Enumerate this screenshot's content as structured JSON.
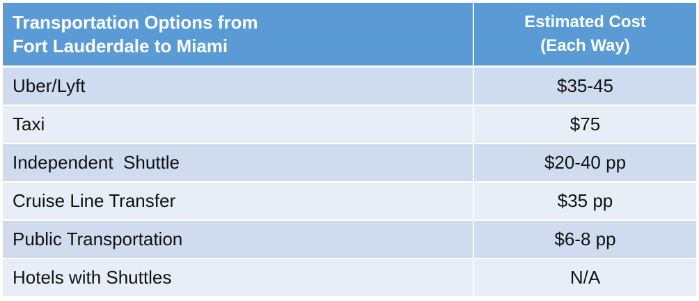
{
  "header": {
    "col1_line1": "Transportation Options from",
    "col1_line2": "Fort Lauderdale to Miami",
    "col2_line1": "Estimated Cost",
    "col2_line2": "(Each Way)"
  },
  "rows": [
    {
      "option": "Uber/Lyft",
      "cost": "$35-45"
    },
    {
      "option": "Taxi",
      "cost": "$75"
    },
    {
      "option": "Independent  Shuttle",
      "cost": "$20-40 pp"
    },
    {
      "option": "Cruise Line Transfer",
      "cost": "$35 pp"
    },
    {
      "option": "Public Transportation",
      "cost": "$6-8 pp"
    },
    {
      "option": "Hotels with Shuttles",
      "cost": "N/A"
    }
  ],
  "colors": {
    "header": "#5b9bd5",
    "row_dark": "#cfdbee",
    "row_light": "#e8eef7"
  }
}
